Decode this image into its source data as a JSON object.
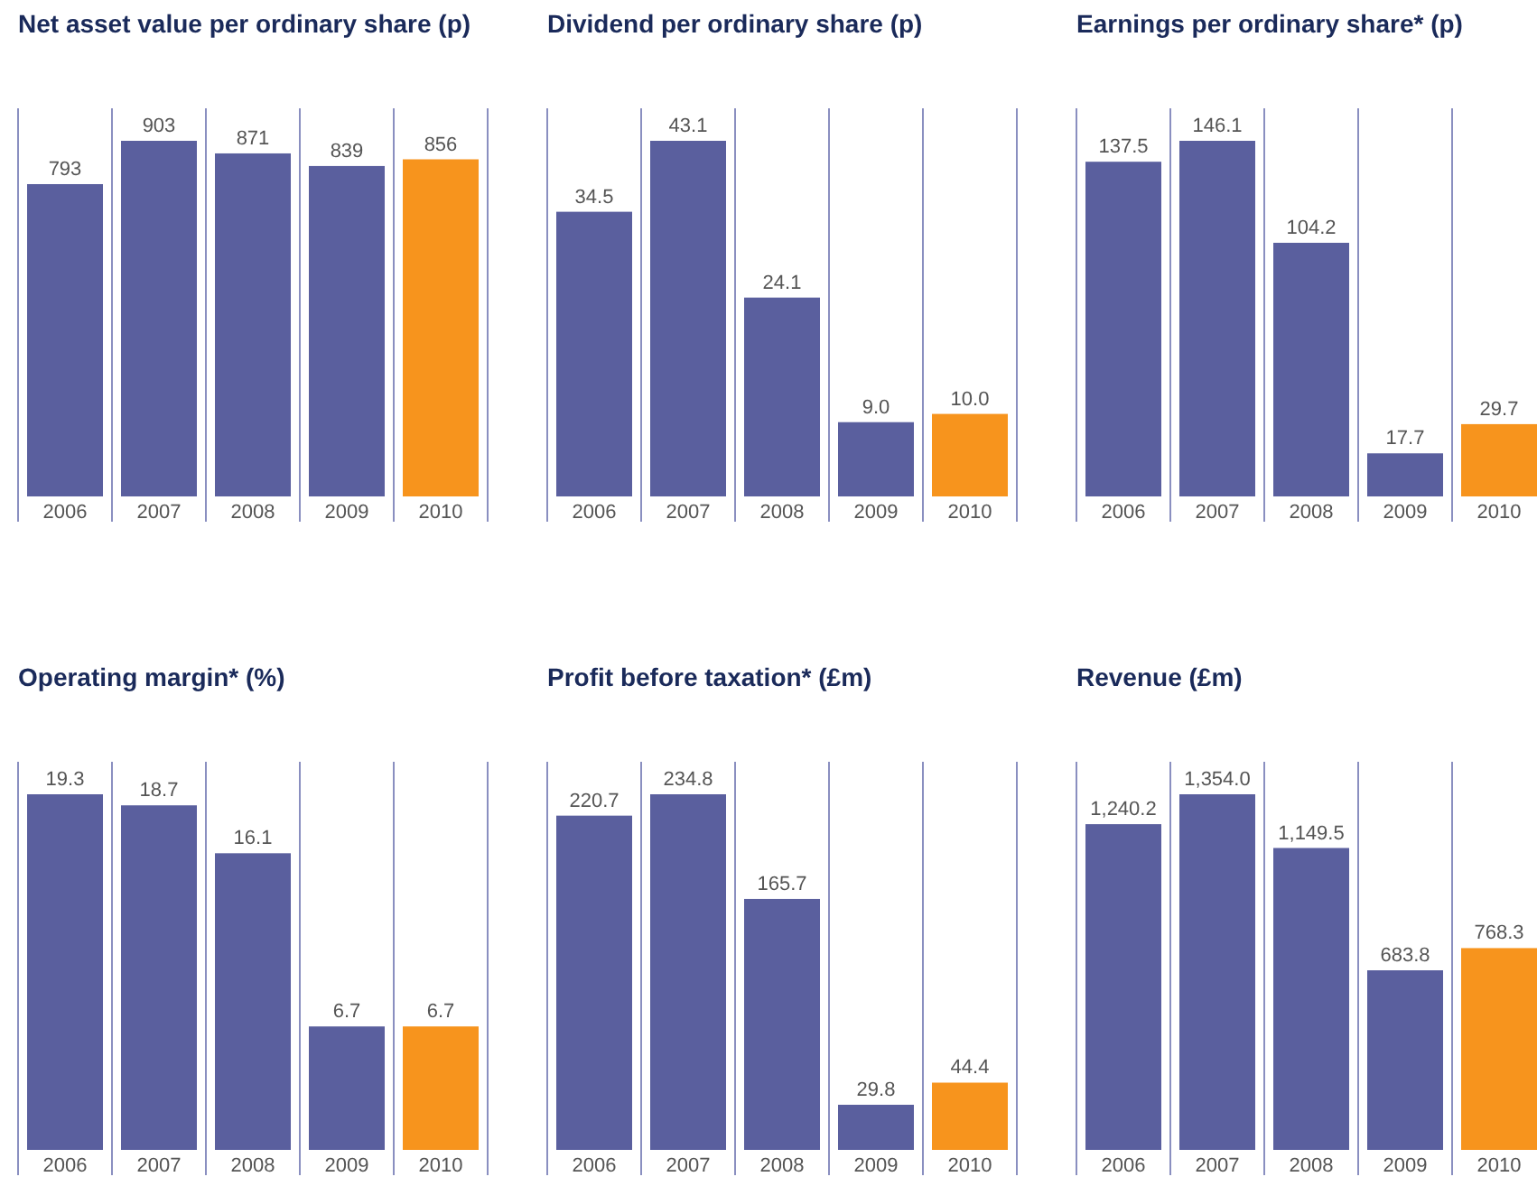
{
  "chart_data": [
    {
      "type": "bar",
      "title": "Net asset value per ordinary share (p)",
      "categories": [
        "2006",
        "2007",
        "2008",
        "2009",
        "2010"
      ],
      "values": [
        793,
        903,
        871,
        839,
        856
      ],
      "value_labels": [
        "793",
        "903",
        "871",
        "839",
        "856"
      ],
      "colors": [
        "#5a5f9e",
        "#5a5f9e",
        "#5a5f9e",
        "#5a5f9e",
        "#f7941d"
      ],
      "grid": "x"
    },
    {
      "type": "bar",
      "title": "Dividend per ordinary share (p)",
      "categories": [
        "2006",
        "2007",
        "2008",
        "2009",
        "2010"
      ],
      "values": [
        34.5,
        43.1,
        24.1,
        9.0,
        10.0
      ],
      "value_labels": [
        "34.5",
        "43.1",
        "24.1",
        "9.0",
        "10.0"
      ],
      "colors": [
        "#5a5f9e",
        "#5a5f9e",
        "#5a5f9e",
        "#5a5f9e",
        "#f7941d"
      ],
      "grid": "x"
    },
    {
      "type": "bar",
      "title": "Earnings per ordinary share* (p)",
      "categories": [
        "2006",
        "2007",
        "2008",
        "2009",
        "2010"
      ],
      "values": [
        137.5,
        146.1,
        104.2,
        17.7,
        29.7
      ],
      "value_labels": [
        "137.5",
        "146.1",
        "104.2",
        "17.7",
        "29.7"
      ],
      "colors": [
        "#5a5f9e",
        "#5a5f9e",
        "#5a5f9e",
        "#5a5f9e",
        "#f7941d"
      ],
      "grid": "x"
    },
    {
      "type": "bar",
      "title": "Operating margin* (%)",
      "categories": [
        "2006",
        "2007",
        "2008",
        "2009",
        "2010"
      ],
      "values": [
        19.3,
        18.7,
        16.1,
        6.7,
        6.7
      ],
      "value_labels": [
        "19.3",
        "18.7",
        "16.1",
        "6.7",
        "6.7"
      ],
      "colors": [
        "#5a5f9e",
        "#5a5f9e",
        "#5a5f9e",
        "#5a5f9e",
        "#f7941d"
      ],
      "grid": "x"
    },
    {
      "type": "bar",
      "title": "Profit before taxation* (£m)",
      "categories": [
        "2006",
        "2007",
        "2008",
        "2009",
        "2010"
      ],
      "values": [
        220.7,
        234.8,
        165.7,
        29.8,
        44.4
      ],
      "value_labels": [
        "220.7",
        "234.8",
        "165.7",
        "29.8",
        "44.4"
      ],
      "colors": [
        "#5a5f9e",
        "#5a5f9e",
        "#5a5f9e",
        "#5a5f9e",
        "#f7941d"
      ],
      "grid": "x"
    },
    {
      "type": "bar",
      "title": "Revenue (£m)",
      "categories": [
        "2006",
        "2007",
        "2008",
        "2009",
        "2010"
      ],
      "values": [
        1240.2,
        1354.0,
        1149.5,
        683.8,
        768.3
      ],
      "value_labels": [
        "1,240.2",
        "1,354.0",
        "1,149.5",
        "683.8",
        "768.3"
      ],
      "colors": [
        "#5a5f9e",
        "#5a5f9e",
        "#5a5f9e",
        "#5a5f9e",
        "#f7941d"
      ],
      "grid": "x"
    }
  ]
}
